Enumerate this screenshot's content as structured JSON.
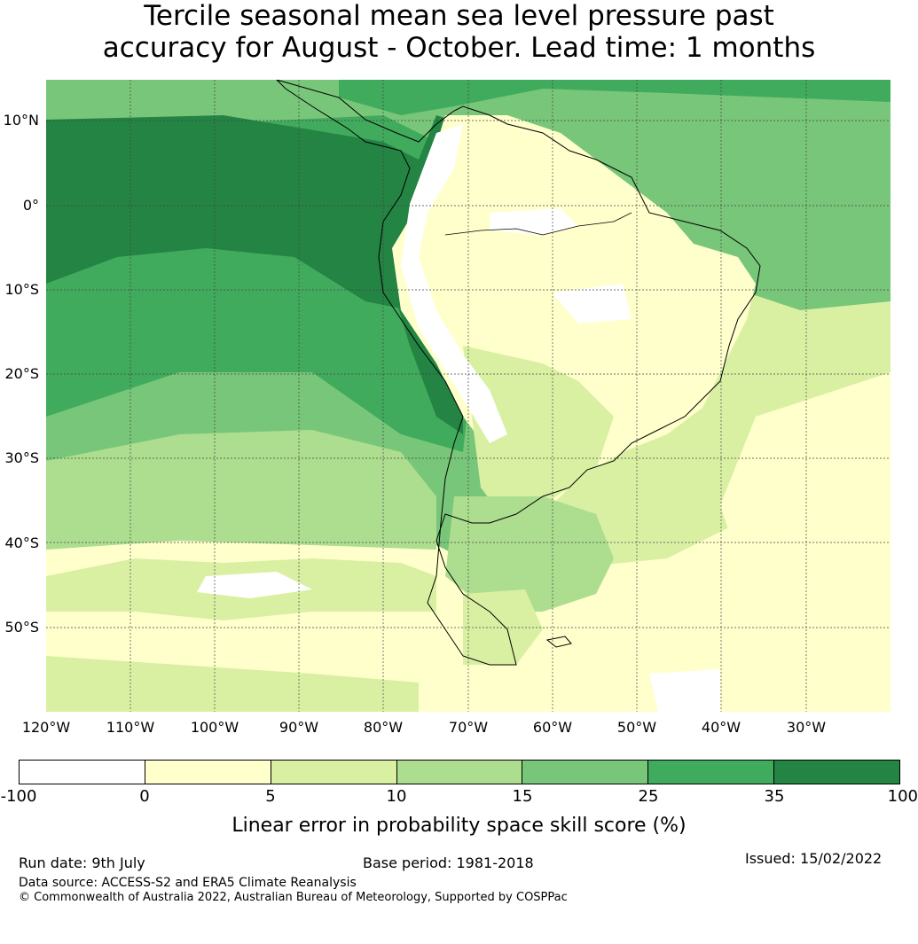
{
  "title": {
    "line1": "Tercile seasonal mean sea level pressure past",
    "line2": "accuracy for August - October. Lead time: 1 months"
  },
  "map": {
    "lat_labels": [
      "10°N",
      "0°",
      "10°S",
      "20°S",
      "30°S",
      "40°S",
      "50°S"
    ],
    "lon_labels": [
      "120°W",
      "110°W",
      "100°W",
      "90°W",
      "80°W",
      "70°W",
      "60°W",
      "50°W",
      "40°W",
      "30°W"
    ]
  },
  "colorbar": {
    "ticks": [
      "-100",
      "0",
      "5",
      "10",
      "15",
      "25",
      "35",
      "100"
    ],
    "colors": [
      "#ffffff",
      "#ffffcc",
      "#d9f0a3",
      "#addd8e",
      "#78c679",
      "#41ab5d",
      "#238443"
    ],
    "label": "Linear error in probability space skill score (%)"
  },
  "footer": {
    "run_date": "Run date: 9th July",
    "base_period": "Base period: 1981-2018",
    "issued": "Issued: 15/02/2022",
    "data_source": "Data source: ACCESS-S2 and ERA5 Climate Reanalysis",
    "copyright": "© Commonwealth of Australia 2022, Australian Bureau of Meteorology, Supported by COSPPac"
  }
}
